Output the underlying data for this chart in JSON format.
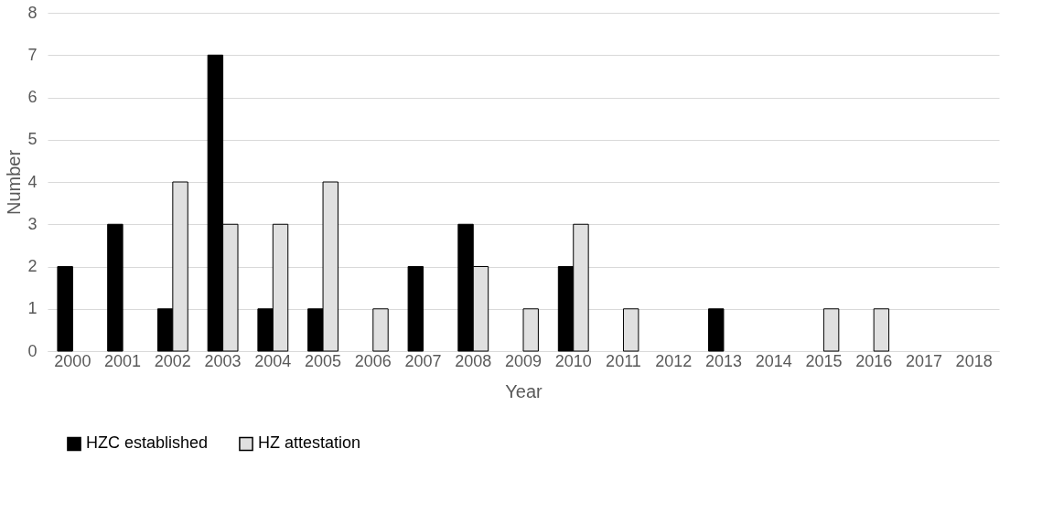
{
  "chart_data": {
    "type": "bar",
    "xlabel": "Year",
    "ylabel": "Number",
    "categories": [
      "2000",
      "2001",
      "2002",
      "2003",
      "2004",
      "2005",
      "2006",
      "2007",
      "2008",
      "2009",
      "2010",
      "2011",
      "2012",
      "2013",
      "2014",
      "2015",
      "2016",
      "2017",
      "2018"
    ],
    "series": [
      {
        "name": "HZC established",
        "color": "#000000",
        "values": [
          2,
          3,
          1,
          7,
          1,
          1,
          0,
          2,
          3,
          0,
          2,
          0,
          0,
          1,
          0,
          0,
          0,
          0,
          0
        ]
      },
      {
        "name": "HZ attestation",
        "color": "#e0e0e0",
        "values": [
          0,
          0,
          4,
          3,
          3,
          4,
          1,
          0,
          2,
          1,
          3,
          1,
          0,
          0,
          0,
          1,
          1,
          0,
          0
        ]
      }
    ],
    "ylim": [
      0,
      8
    ],
    "yticks": [
      0,
      1,
      2,
      3,
      4,
      5,
      6,
      7,
      8
    ],
    "grid": "y",
    "legend": "bottom"
  }
}
